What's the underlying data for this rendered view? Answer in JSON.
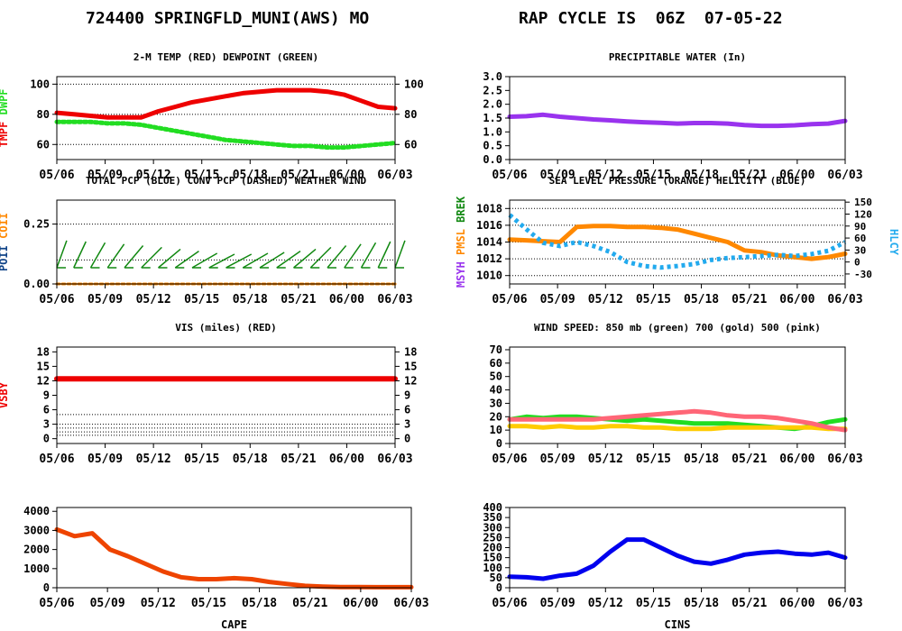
{
  "header": {
    "station": "724400 SPRINGFLD_MUNI(AWS) MO",
    "cycle": "RAP CYCLE IS  06Z  07-05-22"
  },
  "colors": {
    "red": "#ee0000",
    "green": "#22dd22",
    "dkgreen": "#118811",
    "purple": "#9933ee",
    "orange": "#ff8800",
    "blue": "#0000ee",
    "cyan": "#22aaee",
    "gold": "#ffcc00",
    "pink": "#ff6677",
    "redorange": "#ee4400",
    "navy": "#114488"
  },
  "x_ticks": [
    "05/06",
    "05/09",
    "05/12",
    "05/15",
    "05/18",
    "05/21",
    "06/00",
    "06/03"
  ],
  "chart_data": [
    {
      "id": "temp",
      "type": "line",
      "title": "2-M TEMP (RED) DEWPOINT (GREEN)",
      "ylabel_parts": [
        {
          "text": "TMPF",
          "color": "#ee0000"
        },
        {
          "text": "DWPF",
          "color": "#22dd22"
        }
      ],
      "ylim": [
        50,
        105
      ],
      "y_ticks": [
        60,
        80,
        100
      ],
      "right_ticks": [
        "60",
        "80",
        "100"
      ],
      "grid": true,
      "series": [
        {
          "color": "#ee0000",
          "dash": "",
          "width": 5,
          "values": [
            81,
            80,
            79,
            78,
            78,
            78,
            82,
            85,
            88,
            90,
            92,
            94,
            95,
            96,
            96,
            96,
            95,
            93,
            89,
            85,
            84
          ]
        },
        {
          "color": "#22dd22",
          "dash": "3 3",
          "width": 5,
          "values": [
            75,
            75,
            75,
            74,
            74,
            73,
            71,
            69,
            67,
            65,
            63,
            62,
            61,
            60,
            59,
            59,
            58,
            58,
            59,
            60,
            61
          ]
        }
      ]
    },
    {
      "id": "pw",
      "type": "line",
      "title": "PRECIPITABLE WATER (In)",
      "ylabel_parts": [],
      "ylim": [
        0.0,
        3.0
      ],
      "y_ticks": [
        0.0,
        0.5,
        1.0,
        1.5,
        2.0,
        2.5,
        3.0
      ],
      "y_tick_labels": [
        "0.0",
        "0.5",
        "1.0",
        "1.5",
        "2.0",
        "2.5",
        "3.0"
      ],
      "grid": false,
      "series": [
        {
          "color": "#9933ee",
          "dash": "",
          "width": 5,
          "values": [
            1.55,
            1.57,
            1.62,
            1.55,
            1.5,
            1.45,
            1.42,
            1.38,
            1.35,
            1.33,
            1.3,
            1.32,
            1.32,
            1.3,
            1.25,
            1.22,
            1.22,
            1.24,
            1.28,
            1.3,
            1.4
          ]
        }
      ]
    },
    {
      "id": "precip",
      "type": "line",
      "title": "TOTAL PCP (BLUE) CONV PCP (DASHED) WEATHER WIND",
      "ylabel_parts": [
        {
          "text": "POII",
          "color": "#114488"
        },
        {
          "text": "COII",
          "color": "#ff8800"
        }
      ],
      "ylim": [
        0.0,
        0.35
      ],
      "y_ticks": [
        0.0,
        0.25
      ],
      "y_tick_labels": [
        "0.00",
        "0.25"
      ],
      "grid": true,
      "grid_values": [
        0.1,
        0.25
      ],
      "series": [
        {
          "color": "#ff8800",
          "dash": "3 3",
          "width": 3,
          "values": [
            0,
            0,
            0,
            0,
            0,
            0,
            0,
            0,
            0,
            0,
            0,
            0,
            0,
            0,
            0,
            0,
            0,
            0,
            0,
            0,
            0
          ]
        }
      ],
      "barbs": {
        "color": "#118811",
        "angles": [
          20,
          25,
          30,
          35,
          40,
          45,
          50,
          55,
          60,
          62,
          62,
          60,
          58,
          55,
          50,
          45,
          40,
          35,
          30,
          25,
          20
        ]
      }
    },
    {
      "id": "slp",
      "type": "line",
      "title": "SEA LEVEL PRESSURE (ORANGE) HELICITY (BLUE)",
      "ylabel_parts": [
        {
          "text": "MSYH",
          "color": "#9933ee"
        },
        {
          "text": "PMSL",
          "color": "#ff8800"
        },
        {
          "text": "BREK",
          "color": "#118811"
        }
      ],
      "ylim": [
        1009,
        1019
      ],
      "y_ticks": [
        1010,
        1012,
        1014,
        1016,
        1018
      ],
      "y_tick_labels": [
        "1010",
        "1012",
        "1014",
        "1016",
        "1018"
      ],
      "right_ylabel": "HLCY",
      "right_ylabel_color": "#22aaee",
      "right_ticks": [
        "-30",
        "0",
        "30",
        "60",
        "90",
        "120",
        "150"
      ],
      "right_lim": [
        -55,
        155
      ],
      "right_tick_values": [
        -30,
        0,
        30,
        60,
        90,
        120,
        150
      ],
      "grid": true,
      "series": [
        {
          "color": "#ff8800",
          "dash": "",
          "width": 5,
          "values": [
            1014.3,
            1014.2,
            1014.1,
            1014.0,
            1015.8,
            1015.9,
            1015.9,
            1015.8,
            1015.8,
            1015.7,
            1015.5,
            1015.0,
            1014.5,
            1014.0,
            1013.0,
            1012.8,
            1012.4,
            1012.2,
            1012.0,
            1012.2,
            1012.6
          ]
        }
      ],
      "right_series": [
        {
          "color": "#22aaee",
          "dash": "4 4",
          "width": 5,
          "values": [
            118,
            82,
            48,
            40,
            50,
            40,
            25,
            0,
            -10,
            -14,
            -10,
            -5,
            5,
            10,
            12,
            15,
            18,
            15,
            20,
            28,
            50
          ]
        }
      ]
    },
    {
      "id": "vis",
      "type": "line",
      "title": "VIS (miles) (RED)",
      "ylabel_parts": [
        {
          "text": "VSBY",
          "color": "#ee0000"
        }
      ],
      "ylim": [
        -1,
        19
      ],
      "y_ticks": [
        0,
        3,
        6,
        9,
        12,
        15,
        18
      ],
      "y_tick_labels": [
        "0",
        "3",
        "6",
        "9",
        "12",
        "15",
        "18"
      ],
      "right_ticks": [
        "0",
        "3",
        "6",
        "9",
        "12",
        "15",
        "18"
      ],
      "grid": true,
      "grid_values": [
        0.7,
        1.4,
        2.2,
        3.0,
        5.0
      ],
      "series": [
        {
          "color": "#ee0000",
          "dash": "",
          "width": 6,
          "values": [
            12.4,
            12.4,
            12.4,
            12.4,
            12.4,
            12.4,
            12.4,
            12.4,
            12.4,
            12.4,
            12.4,
            12.4,
            12.4,
            12.4,
            12.4,
            12.4,
            12.4,
            12.4,
            12.4,
            12.4,
            12.4
          ]
        }
      ]
    },
    {
      "id": "wind",
      "type": "line",
      "title": "WIND SPEED: 850 mb (green) 700 (gold) 500 (pink)",
      "ylabel_parts": [],
      "ylim": [
        0,
        72
      ],
      "y_ticks": [
        0,
        10,
        20,
        30,
        40,
        50,
        60,
        70
      ],
      "y_tick_labels": [
        "0",
        "10",
        "20",
        "30",
        "40",
        "50",
        "60",
        "70"
      ],
      "grid": false,
      "series": [
        {
          "color": "#22dd22",
          "dash": "",
          "width": 5,
          "values": [
            18,
            20,
            19,
            20,
            20,
            19,
            18,
            17,
            18,
            17,
            16,
            15,
            15,
            15,
            14,
            13,
            12,
            11,
            13,
            16,
            18
          ]
        },
        {
          "color": "#ffcc00",
          "dash": "",
          "width": 5,
          "values": [
            13,
            13,
            12,
            13,
            12,
            12,
            13,
            13,
            12,
            12,
            11,
            11,
            11,
            12,
            12,
            12,
            12,
            12,
            12,
            11,
            11
          ]
        },
        {
          "color": "#ff6677",
          "dash": "",
          "width": 5,
          "values": [
            18,
            18,
            18,
            18,
            18,
            18,
            19,
            20,
            21,
            22,
            23,
            24,
            23,
            21,
            20,
            20,
            19,
            17,
            15,
            12,
            10
          ]
        }
      ]
    },
    {
      "id": "cape",
      "type": "line",
      "title": "CAPE",
      "title_position": "bottom",
      "ylabel_parts": [],
      "ylim": [
        0,
        4200
      ],
      "y_ticks": [
        0,
        1000,
        2000,
        3000,
        4000
      ],
      "y_tick_labels": [
        "0",
        "1000",
        "2000",
        "3000",
        "4000"
      ],
      "grid": false,
      "series": [
        {
          "color": "#ee4400",
          "dash": "",
          "width": 5,
          "values": [
            3050,
            2700,
            2850,
            2000,
            1650,
            1250,
            850,
            550,
            450,
            450,
            500,
            450,
            300,
            200,
            100,
            60,
            40,
            40,
            30,
            30,
            30
          ]
        }
      ]
    },
    {
      "id": "cins",
      "type": "line",
      "title": "CINS",
      "title_position": "bottom",
      "ylabel_parts": [],
      "ylim": [
        0,
        400
      ],
      "y_ticks": [
        0,
        50,
        100,
        150,
        200,
        250,
        300,
        350,
        400
      ],
      "y_tick_labels": [
        "0",
        "50",
        "100",
        "150",
        "200",
        "250",
        "300",
        "350",
        "400"
      ],
      "grid": false,
      "series": [
        {
          "color": "#0000ee",
          "dash": "",
          "width": 5,
          "values": [
            55,
            52,
            45,
            60,
            70,
            110,
            180,
            240,
            240,
            200,
            160,
            130,
            120,
            140,
            165,
            175,
            180,
            170,
            165,
            175,
            150
          ]
        }
      ]
    }
  ]
}
